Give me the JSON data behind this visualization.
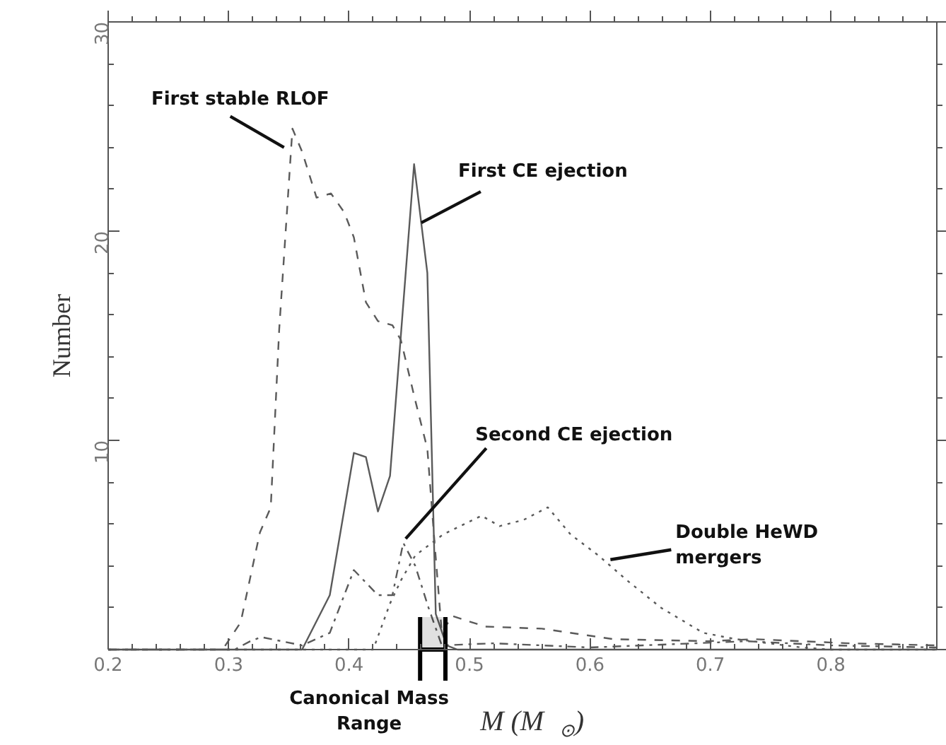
{
  "chart_data": {
    "type": "line",
    "xlabel": "M  (M$_{⊙}$)",
    "ylabel": "Number",
    "xlim": [
      0.2,
      0.888
    ],
    "xticks": [
      0.2,
      0.3,
      0.4,
      0.5,
      0.6,
      0.7,
      0.8
    ],
    "ylim": [
      0,
      30
    ],
    "yticks": [
      {
        "value": 0,
        "label": null
      },
      10,
      20,
      30
    ],
    "grid": false,
    "marker": "none",
    "series": [
      {
        "color": "#5a5a5a",
        "line_style": "dashed",
        "x": [
          0.2,
          0.295,
          0.31,
          0.326,
          0.335,
          0.342,
          0.353,
          0.361,
          0.373,
          0.385,
          0.396,
          0.404,
          0.414,
          0.424,
          0.436,
          0.443,
          0.455,
          0.465,
          0.471,
          0.477,
          0.48,
          0.486,
          0.513,
          0.56,
          0.619,
          0.698,
          0.736,
          0.815,
          0.888
        ],
        "values": [
          0,
          0,
          1.3,
          5.6,
          6.8,
          15.3,
          24.9,
          23.8,
          21.6,
          21.8,
          20.9,
          19.7,
          16.6,
          15.7,
          15.5,
          14.8,
          11.9,
          9.6,
          5.1,
          0.8,
          1.1,
          1.6,
          1.1,
          1.0,
          0.5,
          0.4,
          0.5,
          0.3,
          0.2
        ]
      },
      {
        "color": "#5a5a5a",
        "line_style": "solid",
        "x": [
          0.2,
          0.361,
          0.384,
          0.404,
          0.414,
          0.424,
          0.434,
          0.454,
          0.465,
          0.472,
          0.481,
          0.49,
          0.888
        ],
        "values": [
          0,
          0,
          2.6,
          9.4,
          9.2,
          6.6,
          8.3,
          23.2,
          18.0,
          1.7,
          0.2,
          0,
          0
        ]
      },
      {
        "color": "#5a5a5a",
        "line_style": "dashdot",
        "x": [
          0.2,
          0.305,
          0.318,
          0.327,
          0.361,
          0.384,
          0.404,
          0.424,
          0.436,
          0.445,
          0.455,
          0.466,
          0.477,
          0.52,
          0.6,
          0.73,
          0.8,
          0.888
        ],
        "values": [
          0,
          0,
          0.4,
          0.6,
          0.2,
          0.8,
          3.8,
          2.6,
          2.6,
          5.1,
          4.0,
          2.0,
          0.2,
          0.3,
          0.1,
          0.4,
          0.2,
          0.1
        ]
      },
      {
        "color": "#5a5a5a",
        "line_style": "dotted",
        "x": [
          0.2,
          0.42,
          0.434,
          0.443,
          0.455,
          0.478,
          0.51,
          0.525,
          0.545,
          0.565,
          0.584,
          0.607,
          0.631,
          0.659,
          0.694,
          0.721,
          0.776,
          0.8,
          0.888
        ],
        "values": [
          0,
          0,
          2.2,
          3.3,
          4.5,
          5.5,
          6.4,
          5.9,
          6.2,
          6.8,
          5.5,
          4.5,
          3.3,
          2.0,
          0.8,
          0.5,
          0.1,
          0,
          0
        ]
      }
    ],
    "annotations": [
      {
        "text": "First stable RLOF",
        "x": 0.346,
        "y": 24.0
      },
      {
        "text": "First CE ejection",
        "x": 0.46,
        "y": 20.4
      },
      {
        "text": "Second CE ejection",
        "x": 0.447,
        "y": 5.3
      },
      {
        "text": "Double HeWD\nmergers",
        "x": 0.617,
        "y": 4.3
      }
    ],
    "bands": [
      {
        "axis": "x",
        "from": 0.459,
        "to": 0.48,
        "label": "Canonical Mass\nRange",
        "color": "#000000"
      }
    ]
  }
}
